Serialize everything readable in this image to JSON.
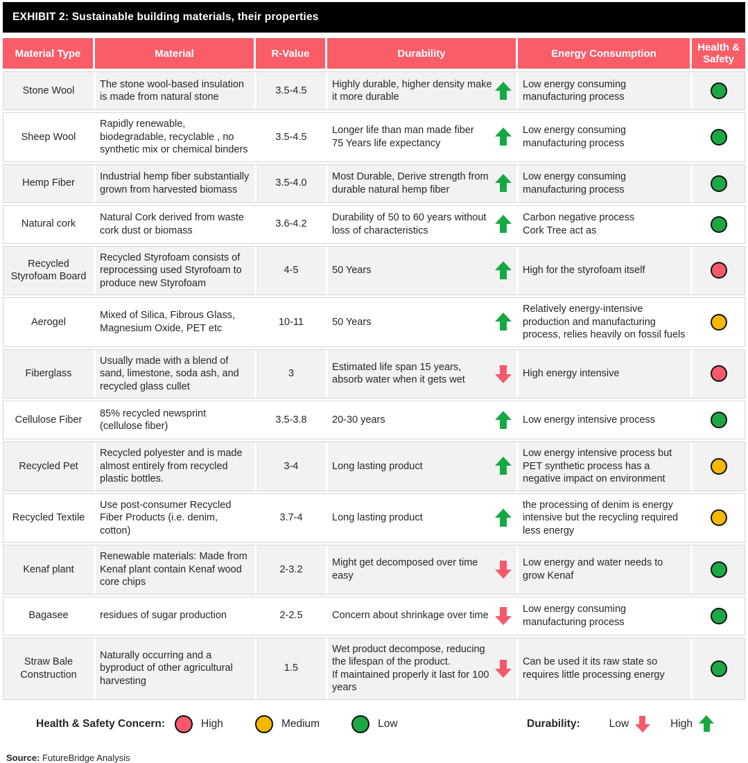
{
  "title": "EXHIBIT 2: Sustainable building materials, their properties",
  "colors": {
    "header_bg": "#f85d68",
    "trend_up_green": "#17a845",
    "trend_down_red": "#f7596b",
    "dot_green": "#1ca843",
    "dot_red": "#f7596b",
    "dot_yellow": "#f4b800",
    "row_shade": "#f2f2f2"
  },
  "table": {
    "headers": [
      "Material Type",
      "Material",
      "R-Value",
      "Durability",
      "Energy Consumption",
      "Health & Safety"
    ],
    "rows": [
      {
        "material_type": "Stone Wool",
        "material": "The stone wool-based insulation is made from natural stone",
        "r_value": "3.5-4.5",
        "durability": "Highly durable, higher density make it more durable",
        "durability_trend": "up",
        "energy": "Low energy consuming manufacturing process",
        "health": "green"
      },
      {
        "material_type": "Sheep Wool",
        "material": "Rapidly renewable, biodegradable, recyclable , no synthetic mix or chemical binders",
        "r_value": "3.5-4.5",
        "durability": "Longer life than man made fiber\n75 Years life expectancy",
        "durability_trend": "up",
        "energy": "Low energy consuming manufacturing process",
        "health": "green"
      },
      {
        "material_type": "Hemp Fiber",
        "material": "Industrial hemp fiber substantially grown from harvested biomass",
        "r_value": "3.5-4.0",
        "durability": "Most Durable, Derive strength from durable natural hemp fiber",
        "durability_trend": "up",
        "energy": "Low energy consuming manufacturing process",
        "health": "green"
      },
      {
        "material_type": "Natural cork",
        "material": "Natural Cork derived from waste cork dust or biomass",
        "r_value": "3.6-4.2",
        "durability": "Durability of 50 to 60 years without loss of characteristics",
        "durability_trend": "up",
        "energy": "Carbon negative process\nCork Tree act as",
        "health": "green"
      },
      {
        "material_type": "Recycled Styrofoam Board",
        "material": "Recycled Styrofoam consists of reprocessing used Styrofoam to produce new Styrofoam",
        "r_value": "4-5",
        "durability": "50 Years",
        "durability_trend": "up",
        "energy": "High for the styrofoam itself",
        "health": "red"
      },
      {
        "material_type": "Aerogel",
        "material": "Mixed of Silica, Fibrous Glass, Magnesium Oxide, PET etc",
        "r_value": "10-11",
        "durability": "50 Years",
        "durability_trend": "up",
        "energy": "Relatively energy-intensive production and manufacturing process, relies heavily on fossil fuels",
        "health": "yellow"
      },
      {
        "material_type": "Fiberglass",
        "material": "Usually made with a blend of sand, limestone, soda ash, and recycled glass cullet",
        "r_value": "3",
        "durability": "Estimated life span 15 years, absorb water when it gets wet",
        "durability_trend": "down",
        "energy": "High energy intensive",
        "health": "red"
      },
      {
        "material_type": "Cellulose Fiber",
        "material": "85% recycled newsprint (cellulose fiber)",
        "r_value": "3.5-3.8",
        "durability": "20-30 years",
        "durability_trend": "up",
        "energy": "Low energy intensive process",
        "health": "green"
      },
      {
        "material_type": "Recycled Pet",
        "material": "Recycled polyester and is made almost entirely from recycled plastic bottles.",
        "r_value": "3-4",
        "durability": "Long lasting product",
        "durability_trend": "up",
        "energy": "Low energy intensive process but PET synthetic process has a negative impact on environment",
        "health": "yellow"
      },
      {
        "material_type": "Recycled Textile",
        "material": "Use post-consumer Recycled Fiber Products (i.e. denim, cotton)",
        "r_value": "3.7-4",
        "durability": "Long lasting product",
        "durability_trend": "up",
        "energy": "the processing of denim is energy intensive but the recycling required less energy",
        "health": "yellow"
      },
      {
        "material_type": "Kenaf plant",
        "material": "Renewable materials: Made from Kenaf plant contain Kenaf wood core chips",
        "r_value": "2-3.2",
        "durability": "Might get decomposed over time easy",
        "durability_trend": "down",
        "energy": "Low energy and water needs to grow Kenaf",
        "health": "green"
      },
      {
        "material_type": "Bagasee",
        "material": "residues of sugar production",
        "r_value": "2-2.5",
        "durability": "Concern about shrinkage over time",
        "durability_trend": "down",
        "energy": "Low energy consuming manufacturing process",
        "health": "green"
      },
      {
        "material_type": "Straw Bale Construction",
        "material": "Naturally occurring and a byproduct of other agricultural harvesting",
        "r_value": "1.5",
        "durability": "Wet product decompose, reducing the lifespan of the product.\nIf maintained properly it last for 100 years",
        "durability_trend": "down",
        "energy": "Can be used it its raw state so requires little processing energy",
        "health": "green"
      }
    ]
  },
  "legend": {
    "health_label": "Health & Safety Concern:",
    "health_items": [
      {
        "label": "High",
        "color": "red"
      },
      {
        "label": "Medium",
        "color": "yellow"
      },
      {
        "label": "Low",
        "color": "green"
      }
    ],
    "durability_label": "Durability:",
    "durability_items": [
      {
        "label": "Low",
        "trend": "down"
      },
      {
        "label": "High",
        "trend": "up"
      }
    ]
  },
  "source": {
    "label": "Source:",
    "text": "FutureBridge Analysis"
  }
}
